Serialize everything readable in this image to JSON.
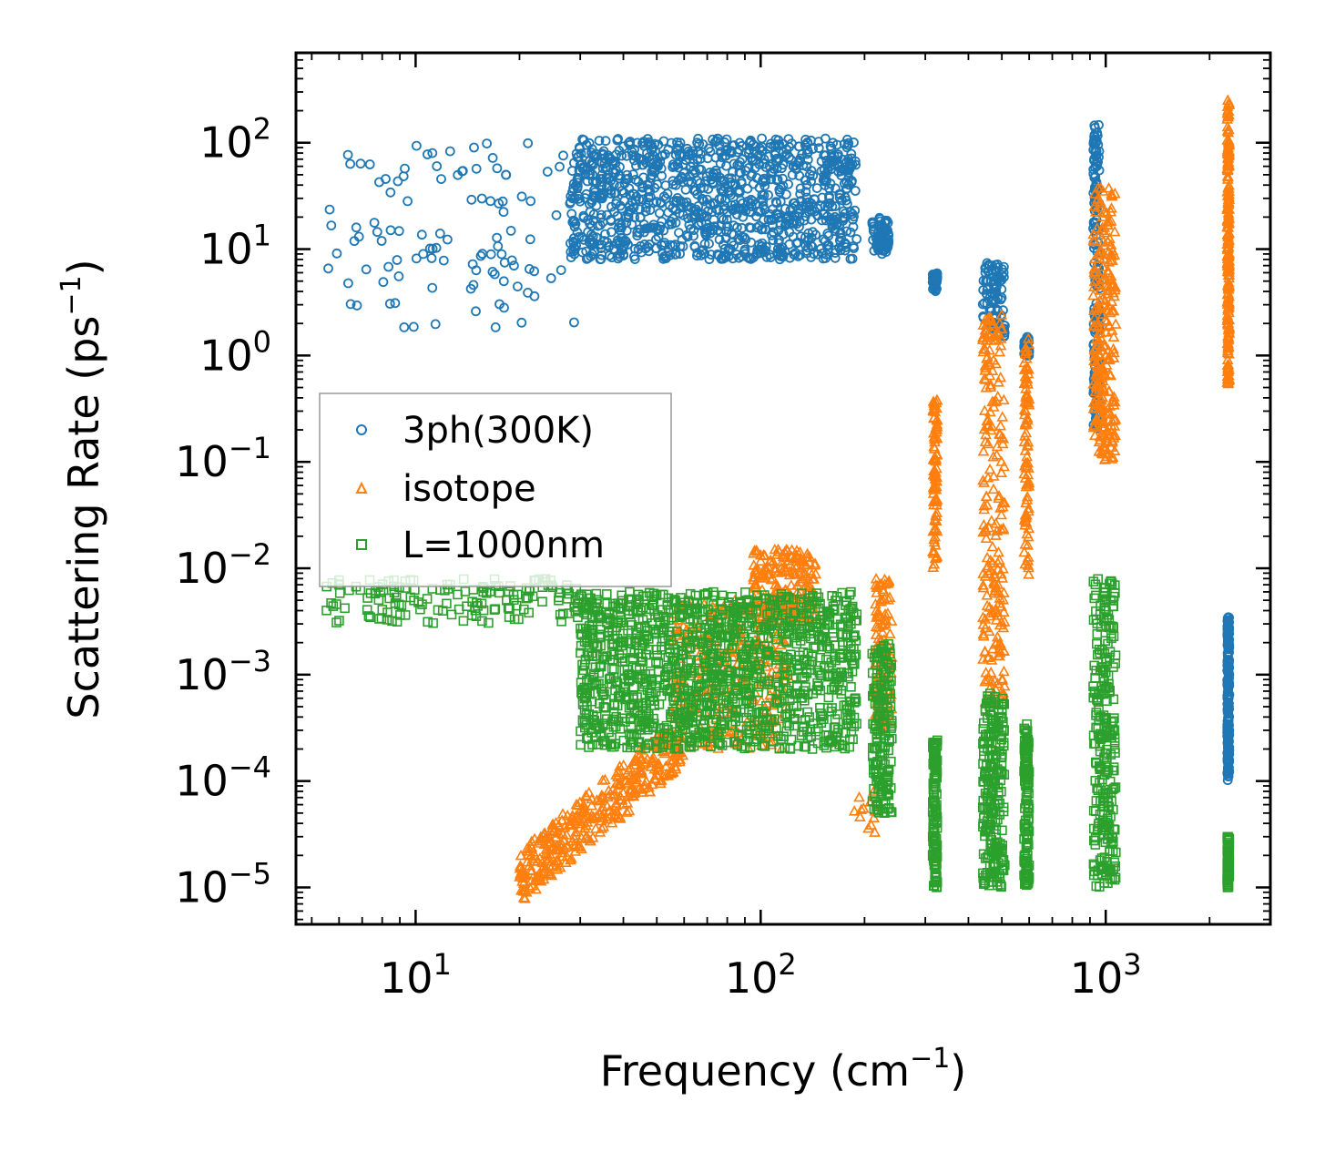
{
  "chart_data": {
    "type": "scatter",
    "xlabel": "Frequency (cm",
    "xlabel_sup": "−1",
    "xlabel_end": ")",
    "ylabel": "Scattering Rate (ps",
    "ylabel_sup": "−1",
    "ylabel_end": ")",
    "xscale": "log",
    "yscale": "log",
    "xlim": [
      4.5,
      3000
    ],
    "ylim": [
      4.5e-06,
      700
    ],
    "x_ticks": [
      {
        "value": 10,
        "base": "10",
        "exp": "1"
      },
      {
        "value": 100,
        "base": "10",
        "exp": "2"
      },
      {
        "value": 1000,
        "base": "10",
        "exp": "3"
      }
    ],
    "y_ticks": [
      {
        "value": 100,
        "base": "10",
        "exp": "2"
      },
      {
        "value": 10,
        "base": "10",
        "exp": "1"
      },
      {
        "value": 1,
        "base": "10",
        "exp": "0"
      },
      {
        "value": 0.1,
        "base": "10",
        "exp": "−1"
      },
      {
        "value": 0.01,
        "base": "10",
        "exp": "−2"
      },
      {
        "value": 0.001,
        "base": "10",
        "exp": "−3"
      },
      {
        "value": 0.0001,
        "base": "10",
        "exp": "−4"
      },
      {
        "value": 1e-05,
        "base": "10",
        "exp": "−5"
      }
    ],
    "legend_position": "center-left",
    "series": [
      {
        "name": "3ph(300K)",
        "marker": "circle",
        "color": "#1f77b4",
        "clusters": [
          {
            "x": [
              5.5,
              30
            ],
            "y": [
              1.8,
              100
            ],
            "n": 110
          },
          {
            "x": [
              28,
              190
            ],
            "y": [
              8,
              110
            ],
            "n": 1100
          },
          {
            "x": [
              210,
              235
            ],
            "y": [
              9,
              20
            ],
            "n": 70
          },
          {
            "x": [
              315,
              325
            ],
            "y": [
              4,
              6
            ],
            "n": 40
          },
          {
            "x": [
              440,
              510
            ],
            "y": [
              1.5,
              7.5
            ],
            "n": 90
          },
          {
            "x": [
              580,
              600
            ],
            "y": [
              1.0,
              1.5
            ],
            "n": 40
          },
          {
            "x": [
              920,
              960
            ],
            "y": [
              0.2,
              150
            ],
            "n": 160
          },
          {
            "x": [
              2250,
              2280
            ],
            "y": [
              0.0001,
              0.0035
            ],
            "n": 200
          }
        ]
      },
      {
        "name": "isotope",
        "marker": "triangle",
        "color": "#ff7f0e",
        "clusters": [
          {
            "x": [
              20,
              60
            ],
            "y": [
              1e-05,
              0.0002
            ],
            "n": 380,
            "trend": true
          },
          {
            "x": [
              55,
              120
            ],
            "y": [
              0.0002,
              0.005
            ],
            "n": 300
          },
          {
            "x": [
              95,
              145
            ],
            "y": [
              0.003,
              0.015
            ],
            "n": 220
          },
          {
            "x": [
              185,
              215
            ],
            "y": [
              3e-05,
              0.0001
            ],
            "n": 12
          },
          {
            "x": [
              215,
              240
            ],
            "y": [
              0.0003,
              0.008
            ],
            "n": 120
          },
          {
            "x": [
              315,
              325
            ],
            "y": [
              0.01,
              0.4
            ],
            "n": 90
          },
          {
            "x": [
              440,
              510
            ],
            "y": [
              0.0005,
              2.5
            ],
            "n": 220
          },
          {
            "x": [
              580,
              600
            ],
            "y": [
              0.008,
              1.5
            ],
            "n": 90
          },
          {
            "x": [
              920,
              1070
            ],
            "y": [
              0.1,
              40
            ],
            "n": 260
          },
          {
            "x": [
              2250,
              2280
            ],
            "y": [
              0.5,
              250
            ],
            "n": 220
          }
        ]
      },
      {
        "name": "L=1000nm",
        "marker": "square",
        "color": "#2ca02c",
        "clusters": [
          {
            "x": [
              5.5,
              30
            ],
            "y": [
              0.003,
              0.008
            ],
            "n": 150
          },
          {
            "x": [
              30,
              190
            ],
            "y": [
              0.0002,
              0.006
            ],
            "n": 1300
          },
          {
            "x": [
              210,
              240
            ],
            "y": [
              5e-05,
              0.002
            ],
            "n": 170
          },
          {
            "x": [
              315,
              325
            ],
            "y": [
              1e-05,
              0.00025
            ],
            "n": 130
          },
          {
            "x": [
              440,
              510
            ],
            "y": [
              1e-05,
              0.0007
            ],
            "n": 220
          },
          {
            "x": [
              580,
              600
            ],
            "y": [
              1e-05,
              0.00035
            ],
            "n": 130
          },
          {
            "x": [
              920,
              1070
            ],
            "y": [
              1e-05,
              0.008
            ],
            "n": 260
          },
          {
            "x": [
              2250,
              2280
            ],
            "y": [
              1e-05,
              3e-05
            ],
            "n": 90
          }
        ]
      }
    ]
  }
}
